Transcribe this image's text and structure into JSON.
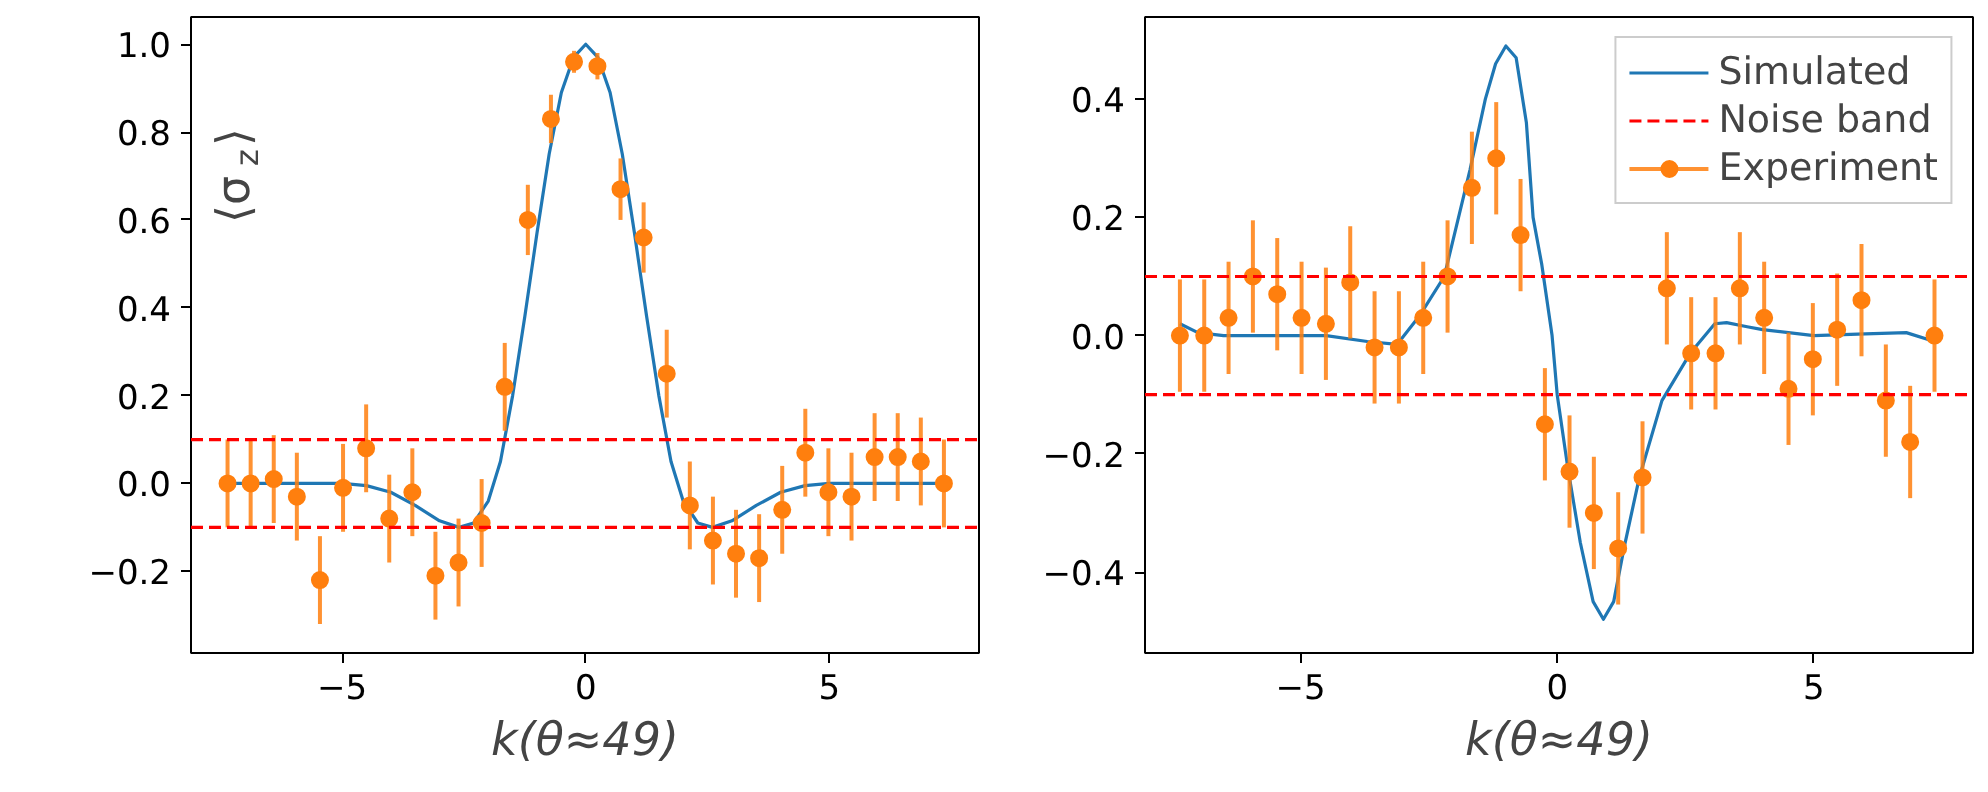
{
  "chart_data": [
    {
      "type": "scatter",
      "ylabel": "⟨σ$_{z}$⟩",
      "xlabel": "k(θ≈49)",
      "xlim": [
        -8.1,
        8.07
      ],
      "ylim": [
        -0.386,
        1.062
      ],
      "xticks": [
        {
          "value": -5,
          "label": "−5"
        },
        0,
        5
      ],
      "yticks": [
        {
          "value": -0.2,
          "label": "−0.2"
        },
        {
          "value": 0,
          "label": "0.0"
        },
        0.2,
        0.4,
        0.6,
        0.8,
        {
          "value": 1,
          "label": "1.0"
        }
      ],
      "grid": false,
      "legend": false,
      "ref_lines": [
        {
          "axis": "y",
          "value": 0.1,
          "color": "#ff0000",
          "line_style": "dashed"
        },
        {
          "axis": "y",
          "value": -0.1,
          "color": "#ff0000",
          "line_style": "dashed"
        }
      ],
      "series": [
        {
          "type": "line",
          "color": "#1f77b4",
          "line_style": "solid",
          "marker": "none",
          "x": [
            -7.35,
            -6,
            -5,
            -4.5,
            -4,
            -3.5,
            -3,
            -2.6,
            -2.3,
            -2,
            -1.75,
            -1.5,
            -1.25,
            -1,
            -0.75,
            -0.5,
            -0.25,
            0,
            0.25,
            0.5,
            0.75,
            1,
            1.25,
            1.5,
            1.75,
            2,
            2.3,
            2.6,
            3,
            3.5,
            4,
            4.5,
            5,
            6,
            7.35
          ],
          "values": [
            0,
            0,
            0,
            -0.005,
            -0.02,
            -0.05,
            -0.085,
            -0.1,
            -0.09,
            -0.04,
            0.05,
            0.2,
            0.38,
            0.57,
            0.75,
            0.89,
            0.97,
            1.0,
            0.97,
            0.89,
            0.75,
            0.57,
            0.38,
            0.2,
            0.05,
            -0.04,
            -0.09,
            -0.1,
            -0.085,
            -0.05,
            -0.02,
            -0.005,
            0,
            0,
            0
          ]
        },
        {
          "color": "#ff7f0e",
          "marker": "circle",
          "x": [
            -7.35,
            -6.876,
            -6.402,
            -5.928,
            -5.454,
            -4.98,
            -4.506,
            -4.032,
            -3.558,
            -3.084,
            -2.61,
            -2.136,
            -1.662,
            -1.188,
            -0.714,
            -0.24,
            0.24,
            0.714,
            1.188,
            1.662,
            2.136,
            2.61,
            3.084,
            3.558,
            4.032,
            4.506,
            4.98,
            5.454,
            5.928,
            6.402,
            6.876,
            7.35
          ],
          "values": [
            0,
            0,
            0.01,
            -0.03,
            -0.22,
            -0.01,
            0.08,
            -0.08,
            -0.02,
            -0.21,
            -0.18,
            -0.09,
            0.22,
            0.6,
            0.83,
            0.96,
            0.95,
            0.67,
            0.56,
            0.25,
            -0.05,
            -0.13,
            -0.16,
            -0.17,
            -0.06,
            0.07,
            -0.02,
            -0.03,
            0.06,
            0.06,
            0.05,
            0
          ],
          "errors": [
            0.1,
            0.1,
            0.1,
            0.1,
            0.1,
            0.1,
            0.1,
            0.1,
            0.1,
            0.1,
            0.1,
            0.1,
            0.1,
            0.08,
            0.055,
            0.025,
            0.03,
            0.07,
            0.08,
            0.1,
            0.1,
            0.1,
            0.1,
            0.1,
            0.1,
            0.1,
            0.1,
            0.1,
            0.1,
            0.1,
            0.1,
            0.1
          ]
        }
      ]
    },
    {
      "type": "scatter",
      "xlabel": "k(θ≈49)",
      "xlim": [
        -8.03,
        8.1
      ],
      "ylim": [
        -0.537,
        0.539
      ],
      "xticks": [
        {
          "value": -5,
          "label": "−5"
        },
        0,
        5
      ],
      "yticks": [
        {
          "value": -0.4,
          "label": "−0.4"
        },
        {
          "value": -0.2,
          "label": "−0.2"
        },
        {
          "value": 0,
          "label": "0.0"
        },
        0.2,
        0.4
      ],
      "grid": false,
      "legend": "top right",
      "ref_lines": [
        {
          "axis": "y",
          "value": 0.1,
          "color": "#ff0000",
          "line_style": "dashed",
          "label": "Noise band"
        },
        {
          "axis": "y",
          "value": -0.1,
          "color": "#ff0000",
          "line_style": "dashed"
        }
      ],
      "series": [
        {
          "type": "line",
          "name": "Simulated",
          "color": "#1f77b4",
          "line_style": "solid",
          "marker": "none",
          "x": [
            -7.35,
            -7,
            -6.5,
            -5.5,
            -4.5,
            -3.7,
            -3.12,
            -2.67,
            -2.2,
            -1.7,
            -1.4,
            -1.2,
            -1.0,
            -0.8,
            -0.6,
            -0.47,
            -0.3,
            -0.1,
            0.0,
            0.2,
            0.45,
            0.7,
            0.9,
            1.1,
            1.3,
            1.6,
            2.04,
            2.59,
            3.07,
            3.3,
            3.7,
            4.0,
            5,
            6,
            6.8,
            7.35
          ],
          "values": [
            0.02,
            0.005,
            0,
            0,
            0,
            -0.01,
            -0.015,
            0.035,
            0.1,
            0.28,
            0.4,
            0.46,
            0.49,
            0.47,
            0.36,
            0.2,
            0.12,
            0,
            -0.1,
            -0.22,
            -0.35,
            -0.45,
            -0.48,
            -0.45,
            -0.36,
            -0.24,
            -0.11,
            -0.03,
            0.02,
            0.022,
            0.015,
            0.01,
            0,
            0.003,
            0.005,
            -0.01
          ]
        },
        {
          "name": "Experiment",
          "color": "#ff7f0e",
          "marker": "circle",
          "x": [
            -7.35,
            -6.876,
            -6.402,
            -5.928,
            -5.454,
            -4.98,
            -4.506,
            -4.032,
            -3.558,
            -3.084,
            -2.61,
            -2.136,
            -1.662,
            -1.188,
            -0.714,
            -0.24,
            0.24,
            0.714,
            1.188,
            1.662,
            2.136,
            2.61,
            3.084,
            3.558,
            4.032,
            4.506,
            4.98,
            5.454,
            5.928,
            6.402,
            6.876,
            7.35
          ],
          "values": [
            0,
            0,
            0.03,
            0.1,
            0.07,
            0.03,
            0.02,
            0.09,
            -0.02,
            -0.02,
            0.03,
            0.1,
            0.25,
            0.3,
            0.17,
            -0.15,
            -0.23,
            -0.3,
            -0.36,
            -0.24,
            0.08,
            -0.03,
            -0.03,
            0.08,
            0.03,
            -0.09,
            -0.04,
            0.01,
            0.06,
            -0.11,
            -0.18,
            0
          ],
          "errors": [
            0.095,
            0.095,
            0.095,
            0.095,
            0.095,
            0.095,
            0.095,
            0.095,
            0.095,
            0.095,
            0.095,
            0.095,
            0.095,
            0.095,
            0.095,
            0.095,
            0.095,
            0.095,
            0.095,
            0.095,
            0.095,
            0.095,
            0.095,
            0.095,
            0.095,
            0.095,
            0.095,
            0.095,
            0.095,
            0.095,
            0.095,
            0.095
          ]
        }
      ]
    }
  ]
}
